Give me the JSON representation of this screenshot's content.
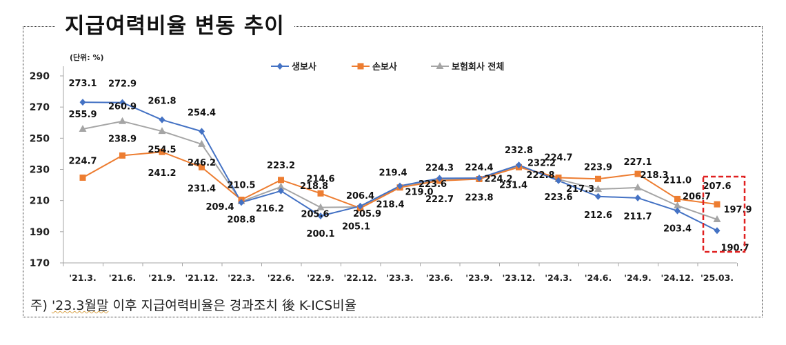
{
  "title": "지급여력비율 변동 추이",
  "footnote": {
    "prefix": "주) ",
    "underlined": "'23.3월말",
    "rest": " 이후 지급여력비율은 경과조치 後 K-ICS비율"
  },
  "chart_data": {
    "type": "line",
    "title": "지급여력비율 변동 추이",
    "unit_label": "(단위: %)",
    "xlabel": "",
    "ylabel": "",
    "ylim": [
      170,
      290
    ],
    "yticks": [
      170,
      190,
      210,
      230,
      250,
      270,
      290
    ],
    "grid": false,
    "legend_position": "top-center",
    "categories": [
      "'21.3.",
      "'21.6.",
      "'21.9.",
      "'21.12.",
      "'22.3.",
      "'22.6.",
      "'22.9.",
      "'22.12.",
      "'23.3.",
      "'23.6.",
      "'23.9.",
      "'23.12.",
      "'24.3.",
      "'24.6.",
      "'24.9.",
      "'24.12.",
      "'25.03."
    ],
    "series": [
      {
        "name": "생보사",
        "color": "#4472C4",
        "marker": "diamond",
        "values": [
          273.1,
          272.9,
          261.8,
          254.4,
          208.8,
          216.2,
          200.1,
          206.4,
          219.4,
          224.3,
          224.4,
          232.8,
          222.8,
          212.6,
          211.7,
          203.4,
          190.7
        ]
      },
      {
        "name": "손보사",
        "color": "#ED7D31",
        "marker": "square",
        "values": [
          224.7,
          238.9,
          241.2,
          231.4,
          210.5,
          223.2,
          214.6,
          205.1,
          218.4,
          222.7,
          223.8,
          231.4,
          224.7,
          223.9,
          227.1,
          211.0,
          207.6
        ]
      },
      {
        "name": "보험회사 전체",
        "color": "#A5A5A5",
        "marker": "triangle",
        "values": [
          255.9,
          260.9,
          254.5,
          246.2,
          209.4,
          218.8,
          205.6,
          205.9,
          219.0,
          223.6,
          224.2,
          232.2,
          223.6,
          217.3,
          218.3,
          206.7,
          197.9
        ]
      }
    ],
    "annotations": [
      {
        "type": "highlight-box",
        "category": "'25.03.",
        "color": "#E02020",
        "style": "dashed"
      }
    ]
  }
}
